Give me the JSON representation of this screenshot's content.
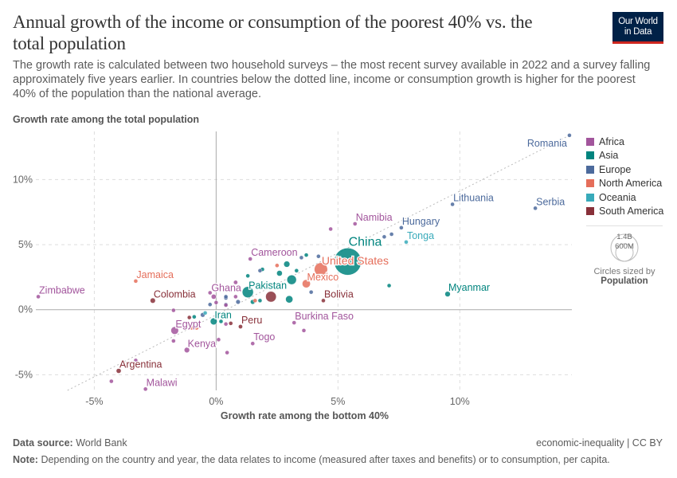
{
  "header": {
    "title": "Annual growth of the income or consumption of the poorest 40% vs. the total population",
    "subtitle": "The growth rate is calculated between two household surveys – the most recent survey available in 2022 and a survey falling approximately five years earlier. In countries below the dotted line, income or consumption growth is higher for the poorest 40% of the population than the national average.",
    "logo_line1": "Our World",
    "logo_line2": "in Data"
  },
  "footer": {
    "source_label": "Data source:",
    "source": "World Bank",
    "license": "economic-inequality | CC BY",
    "note_label": "Note:",
    "note": "Depending on the country and year, the data relates to income (measured after taxes and benefits) or to consumption, per capita."
  },
  "chart_data": {
    "type": "scatter",
    "title": "Annual growth of the income or consumption of the poorest 40% vs. the total population",
    "xlabel": "Growth rate among the bottom 40%",
    "ylabel": "Growth rate among the total population",
    "xlim": [
      -7.4,
      14.6
    ],
    "ylim": [
      -6.2,
      13.7
    ],
    "x_ticks": [
      {
        "v": -5,
        "label": "-5%"
      },
      {
        "v": 0,
        "label": "0%"
      },
      {
        "v": 5,
        "label": "5%"
      },
      {
        "v": 10,
        "label": "10%"
      }
    ],
    "y_ticks": [
      {
        "v": -5,
        "label": "-5%"
      },
      {
        "v": 0,
        "label": "0%"
      },
      {
        "v": 5,
        "label": "5%"
      },
      {
        "v": 10,
        "label": "10%"
      }
    ],
    "grid": true,
    "reference_line": "y = x (dotted)",
    "legend_position": "right",
    "colors": {
      "Africa": "#a2559c",
      "Asia": "#00847e",
      "Europe": "#4c6a9c",
      "North America": "#e56e5a",
      "Oceania": "#38aaba",
      "South America": "#883039"
    },
    "legend": [
      "Africa",
      "Asia",
      "Europe",
      "North America",
      "Oceania",
      "South America"
    ],
    "size_legend": {
      "title": "Circles sized by",
      "variable": "Population",
      "large": "1.4B",
      "small": "600M"
    },
    "points": [
      {
        "label": "Romania",
        "region": "Europe",
        "x": 14.5,
        "y": 13.4,
        "pop": 19
      },
      {
        "label": "Serbia",
        "region": "Europe",
        "x": 13.1,
        "y": 7.8,
        "pop": 7
      },
      {
        "label": "Lithuania",
        "region": "Europe",
        "x": 9.7,
        "y": 8.1,
        "pop": 3
      },
      {
        "label": "Hungary",
        "region": "Europe",
        "x": 7.6,
        "y": 6.3,
        "pop": 10
      },
      {
        "label": "Namibia",
        "region": "Africa",
        "x": 5.7,
        "y": 6.6,
        "pop": 3
      },
      {
        "label": "Tonga",
        "region": "Oceania",
        "x": 7.8,
        "y": 5.2,
        "pop": 0.1
      },
      {
        "label": "China",
        "region": "Asia",
        "x": 5.4,
        "y": 3.7,
        "pop": 1400
      },
      {
        "label": "United States",
        "region": "North America",
        "x": 4.3,
        "y": 3.1,
        "pop": 330
      },
      {
        "label": "Mexico",
        "region": "North America",
        "x": 3.7,
        "y": 2.0,
        "pop": 127
      },
      {
        "label": "Cameroon",
        "region": "Africa",
        "x": 1.4,
        "y": 3.9,
        "pop": 27
      },
      {
        "label": "Pakistan",
        "region": "Asia",
        "x": 1.3,
        "y": 1.35,
        "pop": 235
      },
      {
        "label": "Ghana",
        "region": "Africa",
        "x": 0.8,
        "y": 2.1,
        "pop": 33
      },
      {
        "label": "Myanmar",
        "region": "Asia",
        "x": 9.5,
        "y": 1.2,
        "pop": 54
      },
      {
        "label": "Bolivia",
        "region": "South America",
        "x": 4.4,
        "y": 0.7,
        "pop": 12
      },
      {
        "label": "Iran",
        "region": "Asia",
        "x": -0.1,
        "y": -0.9,
        "pop": 88
      },
      {
        "label": "Peru",
        "region": "South America",
        "x": 1.0,
        "y": -1.3,
        "pop": 33
      },
      {
        "label": "Burkina Faso",
        "region": "Africa",
        "x": 3.2,
        "y": -1.0,
        "pop": 22
      },
      {
        "label": "Togo",
        "region": "Africa",
        "x": 1.5,
        "y": -2.6,
        "pop": 8
      },
      {
        "label": "Kenya",
        "region": "Africa",
        "x": -1.2,
        "y": -3.1,
        "pop": 54
      },
      {
        "label": "Egypt",
        "region": "Africa",
        "x": -1.7,
        "y": -1.6,
        "pop": 110
      },
      {
        "label": "Zimbabwe",
        "region": "Africa",
        "x": -7.3,
        "y": 1.0,
        "pop": 16
      },
      {
        "label": "Jamaica",
        "region": "North America",
        "x": -3.3,
        "y": 2.2,
        "pop": 3
      },
      {
        "label": "Colombia",
        "region": "South America",
        "x": -2.6,
        "y": 0.7,
        "pop": 51
      },
      {
        "label": "Argentina",
        "region": "South America",
        "x": -4.0,
        "y": -4.7,
        "pop": 45
      },
      {
        "label": "Malawi",
        "region": "Africa",
        "x": -2.9,
        "y": -6.1,
        "pop": 20
      },
      {
        "region": "Africa",
        "x": 4.7,
        "y": 6.2,
        "pop": 5
      },
      {
        "region": "Europe",
        "x": 6.9,
        "y": 5.6,
        "pop": 10
      },
      {
        "region": "Europe",
        "x": 7.2,
        "y": 5.8,
        "pop": 5
      },
      {
        "region": "Europe",
        "x": 3.5,
        "y": 4.0,
        "pop": 4
      },
      {
        "region": "Asia",
        "x": 3.7,
        "y": 4.2,
        "pop": 5
      },
      {
        "region": "Europe",
        "x": 4.2,
        "y": 4.1,
        "pop": 17
      },
      {
        "region": "Asia",
        "x": 2.9,
        "y": 3.5,
        "pop": 70
      },
      {
        "region": "North America",
        "x": 2.5,
        "y": 3.4,
        "pop": 5
      },
      {
        "region": "Asia",
        "x": 2.6,
        "y": 2.8,
        "pop": 60
      },
      {
        "region": "Asia",
        "x": 3.1,
        "y": 2.3,
        "pop": 170
      },
      {
        "region": "Asia",
        "x": 3.3,
        "y": 3.0,
        "pop": 30
      },
      {
        "region": "Asia",
        "x": 1.9,
        "y": 3.1,
        "pop": 4
      },
      {
        "region": "Europe",
        "x": 1.8,
        "y": 3.0,
        "pop": 4
      },
      {
        "region": "Asia",
        "x": 1.3,
        "y": 2.6,
        "pop": 4
      },
      {
        "region": "South America",
        "x": 2.25,
        "y": 1.0,
        "pop": 215
      },
      {
        "region": "Asia",
        "x": 3.0,
        "y": 0.8,
        "pop": 100
      },
      {
        "region": "Europe",
        "x": 3.9,
        "y": 1.35,
        "pop": 4
      },
      {
        "region": "Asia",
        "x": 7.1,
        "y": 1.85,
        "pop": 5
      },
      {
        "region": "Asia",
        "x": 1.5,
        "y": 0.6,
        "pop": 40
      },
      {
        "region": "Asia",
        "x": 1.8,
        "y": 0.7,
        "pop": 8
      },
      {
        "region": "North America",
        "x": 1.6,
        "y": 0.7,
        "pop": 10
      },
      {
        "region": "Europe",
        "x": 0.9,
        "y": 0.6,
        "pop": 38
      },
      {
        "region": "Europe",
        "x": 0.4,
        "y": 0.9,
        "pop": 4
      },
      {
        "region": "Europe",
        "x": 0.4,
        "y": 0.4,
        "pop": 4
      },
      {
        "region": "Africa",
        "x": -0.25,
        "y": 1.3,
        "pop": 12
      },
      {
        "region": "Africa",
        "x": -0.1,
        "y": 1.0,
        "pop": 45
      },
      {
        "region": "Africa",
        "x": 0.0,
        "y": 0.55,
        "pop": 5
      },
      {
        "region": "Europe",
        "x": -0.55,
        "y": -0.4,
        "pop": 40
      },
      {
        "region": "Oceania",
        "x": -0.45,
        "y": -0.25,
        "pop": 5
      },
      {
        "region": "Asia",
        "x": 0.2,
        "y": -0.9,
        "pop": 5
      },
      {
        "region": "Africa",
        "x": 0.4,
        "y": -1.1,
        "pop": 5
      },
      {
        "region": "South America",
        "x": 0.6,
        "y": -1.05,
        "pop": 4
      },
      {
        "region": "Africa",
        "x": 3.6,
        "y": -1.6,
        "pop": 5
      },
      {
        "region": "Africa",
        "x": 0.1,
        "y": -2.3,
        "pop": 5
      },
      {
        "region": "Africa",
        "x": -1.75,
        "y": -0.05,
        "pop": 5
      },
      {
        "region": "South America",
        "x": -1.1,
        "y": -0.6,
        "pop": 4
      },
      {
        "region": "Asia",
        "x": -0.9,
        "y": -0.55,
        "pop": 4
      },
      {
        "region": "North America",
        "x": -1.0,
        "y": -1.4,
        "pop": 4
      },
      {
        "region": "North America",
        "x": -0.8,
        "y": -1.4,
        "pop": 4
      },
      {
        "region": "Africa",
        "x": -1.75,
        "y": -2.4,
        "pop": 4
      },
      {
        "region": "Africa",
        "x": 0.45,
        "y": -3.3,
        "pop": 4
      },
      {
        "region": "Africa",
        "x": -4.3,
        "y": -5.5,
        "pop": 10
      },
      {
        "region": "Africa",
        "x": -3.3,
        "y": -3.9,
        "pop": 3
      },
      {
        "region": "Europe",
        "x": 0.4,
        "y": 1.0,
        "pop": 4
      },
      {
        "region": "Africa",
        "x": 0.8,
        "y": 1.0,
        "pop": 4
      },
      {
        "region": "Europe",
        "x": -0.25,
        "y": 0.4,
        "pop": 4
      },
      {
        "region": "Africa",
        "x": 0.4,
        "y": 0.35,
        "pop": 4
      }
    ]
  }
}
